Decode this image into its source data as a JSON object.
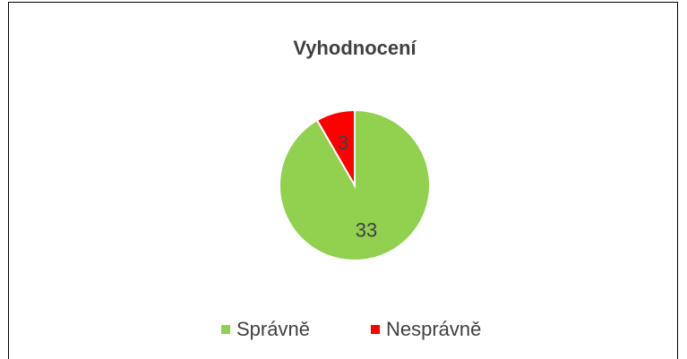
{
  "chart_data": {
    "type": "pie",
    "title": "Vyhodnocení",
    "categories": [
      "Správně",
      "Nesprávně"
    ],
    "values": [
      33,
      3
    ],
    "colors": [
      "#92d050",
      "#ff0000"
    ],
    "legend": "bottom"
  }
}
